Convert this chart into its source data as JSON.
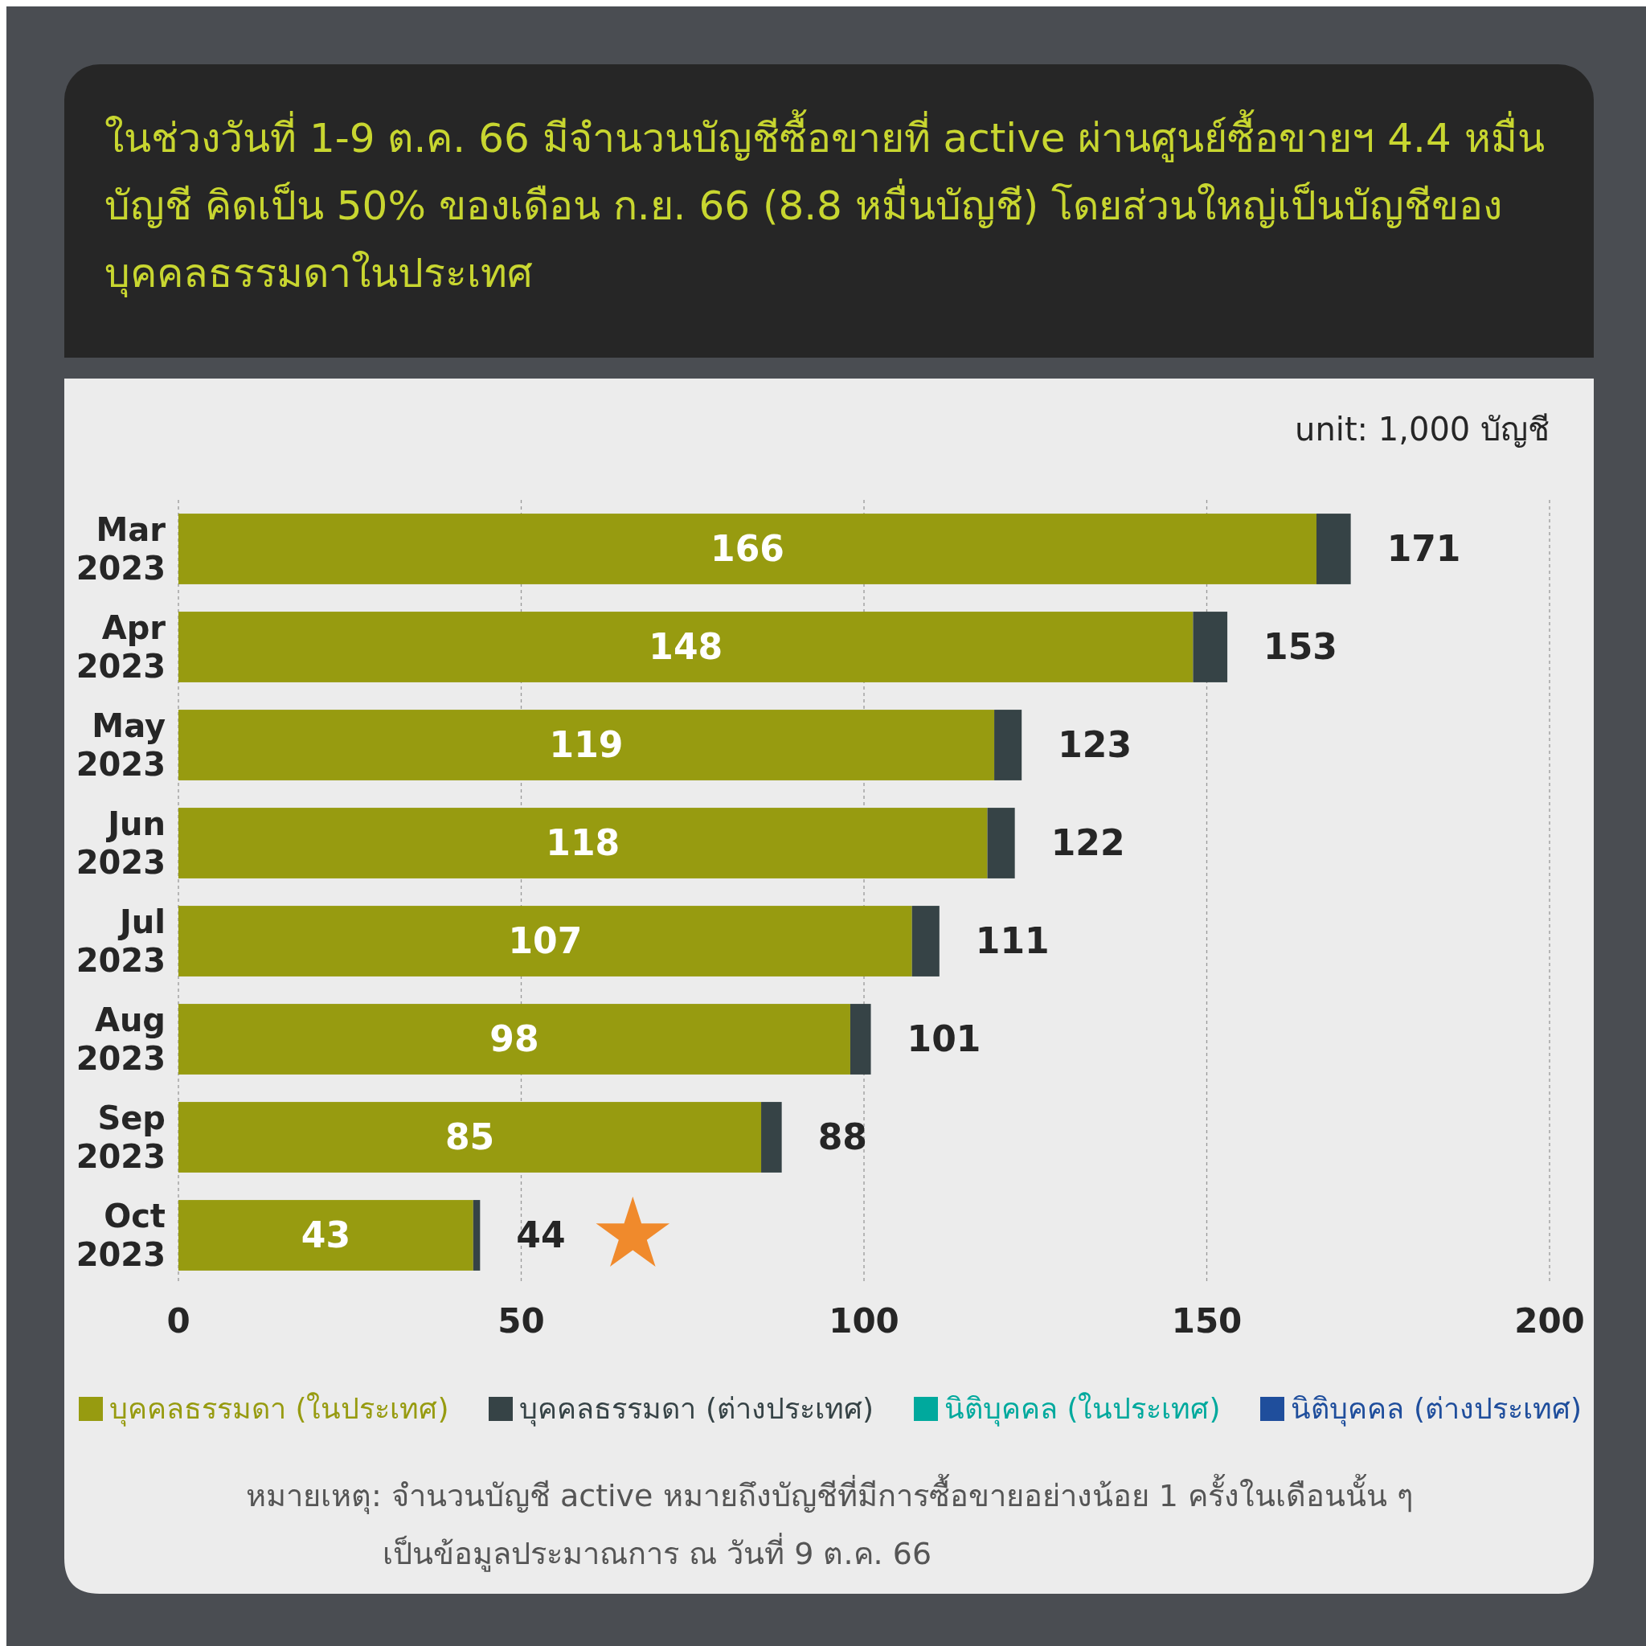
{
  "chart_data": {
    "type": "bar",
    "orientation": "horizontal",
    "stacked": true,
    "title": "ในช่วงวันที่ 1-9 ต.ค. 66 มีจำนวนบัญชีซื้อขายที่ active ผ่านศูนย์ซื้อขายฯ 4.4 หมื่นบัญชี คิดเป็น 50% ของเดือน ก.ย. 66 (8.8 หมื่นบัญชี) โดยส่วนใหญ่เป็นบัญชีของบุคคลธรรมดาในประเทศ",
    "categories": [
      "Mar 2023",
      "Apr 2023",
      "May 2023",
      "Jun 2023",
      "Jul 2023",
      "Aug 2023",
      "Sep 2023",
      "Oct 2023"
    ],
    "series": [
      {
        "name": "บุคคลธรรมดา (ในประเทศ)",
        "color": "#979b10",
        "values": [
          166,
          148,
          119,
          118,
          107,
          98,
          85,
          43
        ],
        "value_labels": [
          "166",
          "148",
          "119",
          "118",
          "107",
          "98",
          "85",
          "43"
        ]
      },
      {
        "name": "บุคคลธรรมดา (ต่างประเทศ)",
        "color": "#364346",
        "values": [
          5,
          5,
          4,
          4,
          4,
          3,
          3,
          1
        ]
      },
      {
        "name": "นิติบุคคล (ในประเทศ)",
        "color": "#00a99d",
        "values": [
          null,
          null,
          null,
          null,
          null,
          null,
          null,
          null
        ]
      },
      {
        "name": "นิติบุคคล (ต่างประเทศ)",
        "color": "#1f4e9c",
        "values": [
          null,
          null,
          null,
          null,
          null,
          null,
          null,
          null
        ]
      }
    ],
    "totals": [
      "171",
      "153",
      "123",
      "122",
      "111",
      "101",
      "88",
      "44"
    ],
    "xlim": [
      0,
      200
    ],
    "xticks": [
      0,
      50,
      100,
      150,
      200
    ],
    "grid": "x",
    "legend": "bottom",
    "annotations": [
      "unit: 1,000 บัญชี",
      "หมายเหตุ: จำนวนบัญชี active หมายถึงบัญชีที่มีการซื้อขายอย่างน้อย 1 ครั้งในเดือนนั้น ๆ",
      "เป็นข้อมูลประมาณการ ณ วันที่ 9 ต.ค. 66"
    ]
  }
}
